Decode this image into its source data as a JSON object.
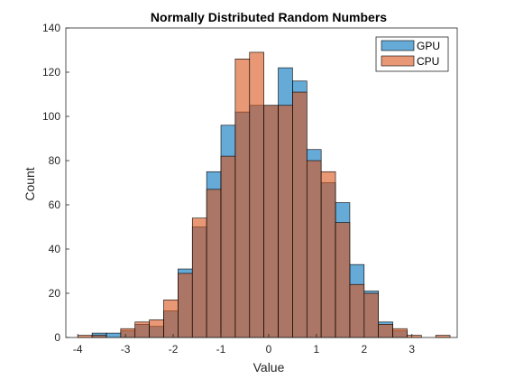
{
  "chart_data": {
    "type": "bar",
    "title": "Normally Distributed Random Numbers",
    "xlabel": "Value",
    "ylabel": "Count",
    "xlim": [
      -4.25,
      3.95
    ],
    "ylim": [
      0,
      140
    ],
    "xticks": [
      -4,
      -3,
      -2,
      -1,
      0,
      1,
      2,
      3
    ],
    "yticks": [
      0,
      20,
      40,
      60,
      80,
      100,
      120,
      140
    ],
    "legend_position": "top-right",
    "grid": false,
    "bin_width": 0.3,
    "series": [
      {
        "name": "GPU",
        "color": "#0072BD",
        "bins": [
          {
            "x0": -3.7,
            "value": 2
          },
          {
            "x0": -3.4,
            "value": 2
          },
          {
            "x0": -3.1,
            "value": 3
          },
          {
            "x0": -2.8,
            "value": 6
          },
          {
            "x0": -2.5,
            "value": 5
          },
          {
            "x0": -2.2,
            "value": 12
          },
          {
            "x0": -1.9,
            "value": 31
          },
          {
            "x0": -1.6,
            "value": 50
          },
          {
            "x0": -1.3,
            "value": 75
          },
          {
            "x0": -1.0,
            "value": 96
          },
          {
            "x0": -0.7,
            "value": 102
          },
          {
            "x0": -0.4,
            "value": 105
          },
          {
            "x0": -0.1,
            "value": 105
          },
          {
            "x0": 0.2,
            "value": 122
          },
          {
            "x0": 0.5,
            "value": 116
          },
          {
            "x0": 0.8,
            "value": 85
          },
          {
            "x0": 1.1,
            "value": 70
          },
          {
            "x0": 1.4,
            "value": 61
          },
          {
            "x0": 1.7,
            "value": 33
          },
          {
            "x0": 2.0,
            "value": 21
          },
          {
            "x0": 2.3,
            "value": 7
          },
          {
            "x0": 2.6,
            "value": 3
          }
        ]
      },
      {
        "name": "CPU",
        "color": "#D95319",
        "bins": [
          {
            "x0": -4.0,
            "value": 1
          },
          {
            "x0": -3.7,
            "value": 1
          },
          {
            "x0": -3.1,
            "value": 4
          },
          {
            "x0": -2.8,
            "value": 7
          },
          {
            "x0": -2.5,
            "value": 8
          },
          {
            "x0": -2.2,
            "value": 17
          },
          {
            "x0": -1.9,
            "value": 29
          },
          {
            "x0": -1.6,
            "value": 54
          },
          {
            "x0": -1.3,
            "value": 67
          },
          {
            "x0": -1.0,
            "value": 82
          },
          {
            "x0": -0.7,
            "value": 126
          },
          {
            "x0": -0.4,
            "value": 129
          },
          {
            "x0": -0.1,
            "value": 105
          },
          {
            "x0": 0.2,
            "value": 105
          },
          {
            "x0": 0.5,
            "value": 111
          },
          {
            "x0": 0.8,
            "value": 80
          },
          {
            "x0": 1.1,
            "value": 75
          },
          {
            "x0": 1.4,
            "value": 52
          },
          {
            "x0": 1.7,
            "value": 24
          },
          {
            "x0": 2.0,
            "value": 20
          },
          {
            "x0": 2.3,
            "value": 6
          },
          {
            "x0": 2.6,
            "value": 4
          },
          {
            "x0": 2.9,
            "value": 1
          },
          {
            "x0": 3.5,
            "value": 1
          }
        ]
      }
    ]
  }
}
